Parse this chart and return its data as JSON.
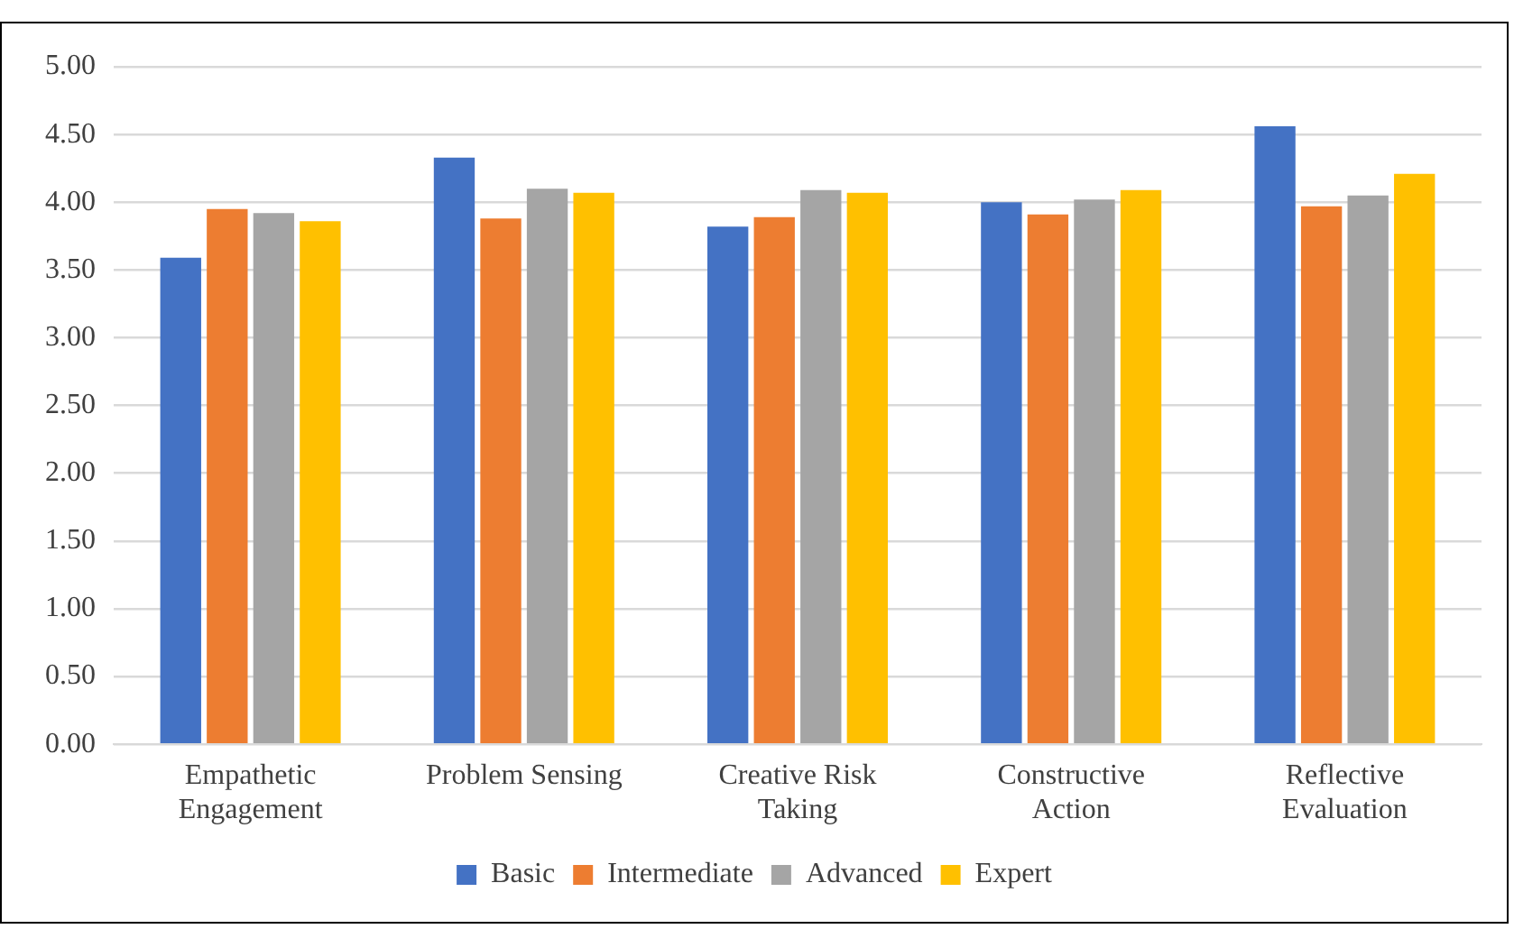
{
  "chart_data": {
    "type": "bar",
    "categories": [
      "Empathetic\nEngagement",
      "Problem Sensing",
      "Creative Risk\nTaking",
      "Constructive\nAction",
      "Reflective\nEvaluation"
    ],
    "series": [
      {
        "name": "Basic",
        "color": "#4472c4",
        "values": [
          3.59,
          4.33,
          3.82,
          4.0,
          4.56
        ]
      },
      {
        "name": "Intermediate",
        "color": "#ed7d31",
        "values": [
          3.95,
          3.88,
          3.89,
          3.91,
          3.97
        ]
      },
      {
        "name": "Advanced",
        "color": "#a5a5a5",
        "values": [
          3.92,
          4.1,
          4.09,
          4.02,
          4.05
        ]
      },
      {
        "name": "Expert",
        "color": "#ffc000",
        "values": [
          3.86,
          4.07,
          4.07,
          4.09,
          4.21
        ]
      }
    ],
    "ylim": [
      0,
      5
    ],
    "yticks": [
      {
        "value": 0,
        "label": "0.00"
      },
      {
        "value": 0.5,
        "label": "0.50"
      },
      {
        "value": 1,
        "label": "1.00"
      },
      {
        "value": 1.5,
        "label": "1.50"
      },
      {
        "value": 2,
        "label": "2.00"
      },
      {
        "value": 2.5,
        "label": "2.50"
      },
      {
        "value": 3,
        "label": "3.00"
      },
      {
        "value": 3.5,
        "label": "3.50"
      },
      {
        "value": 4,
        "label": "4.00"
      },
      {
        "value": 4.5,
        "label": "4.50"
      },
      {
        "value": 5,
        "label": "5.00"
      }
    ],
    "grid": "y",
    "legend": "bottom"
  }
}
